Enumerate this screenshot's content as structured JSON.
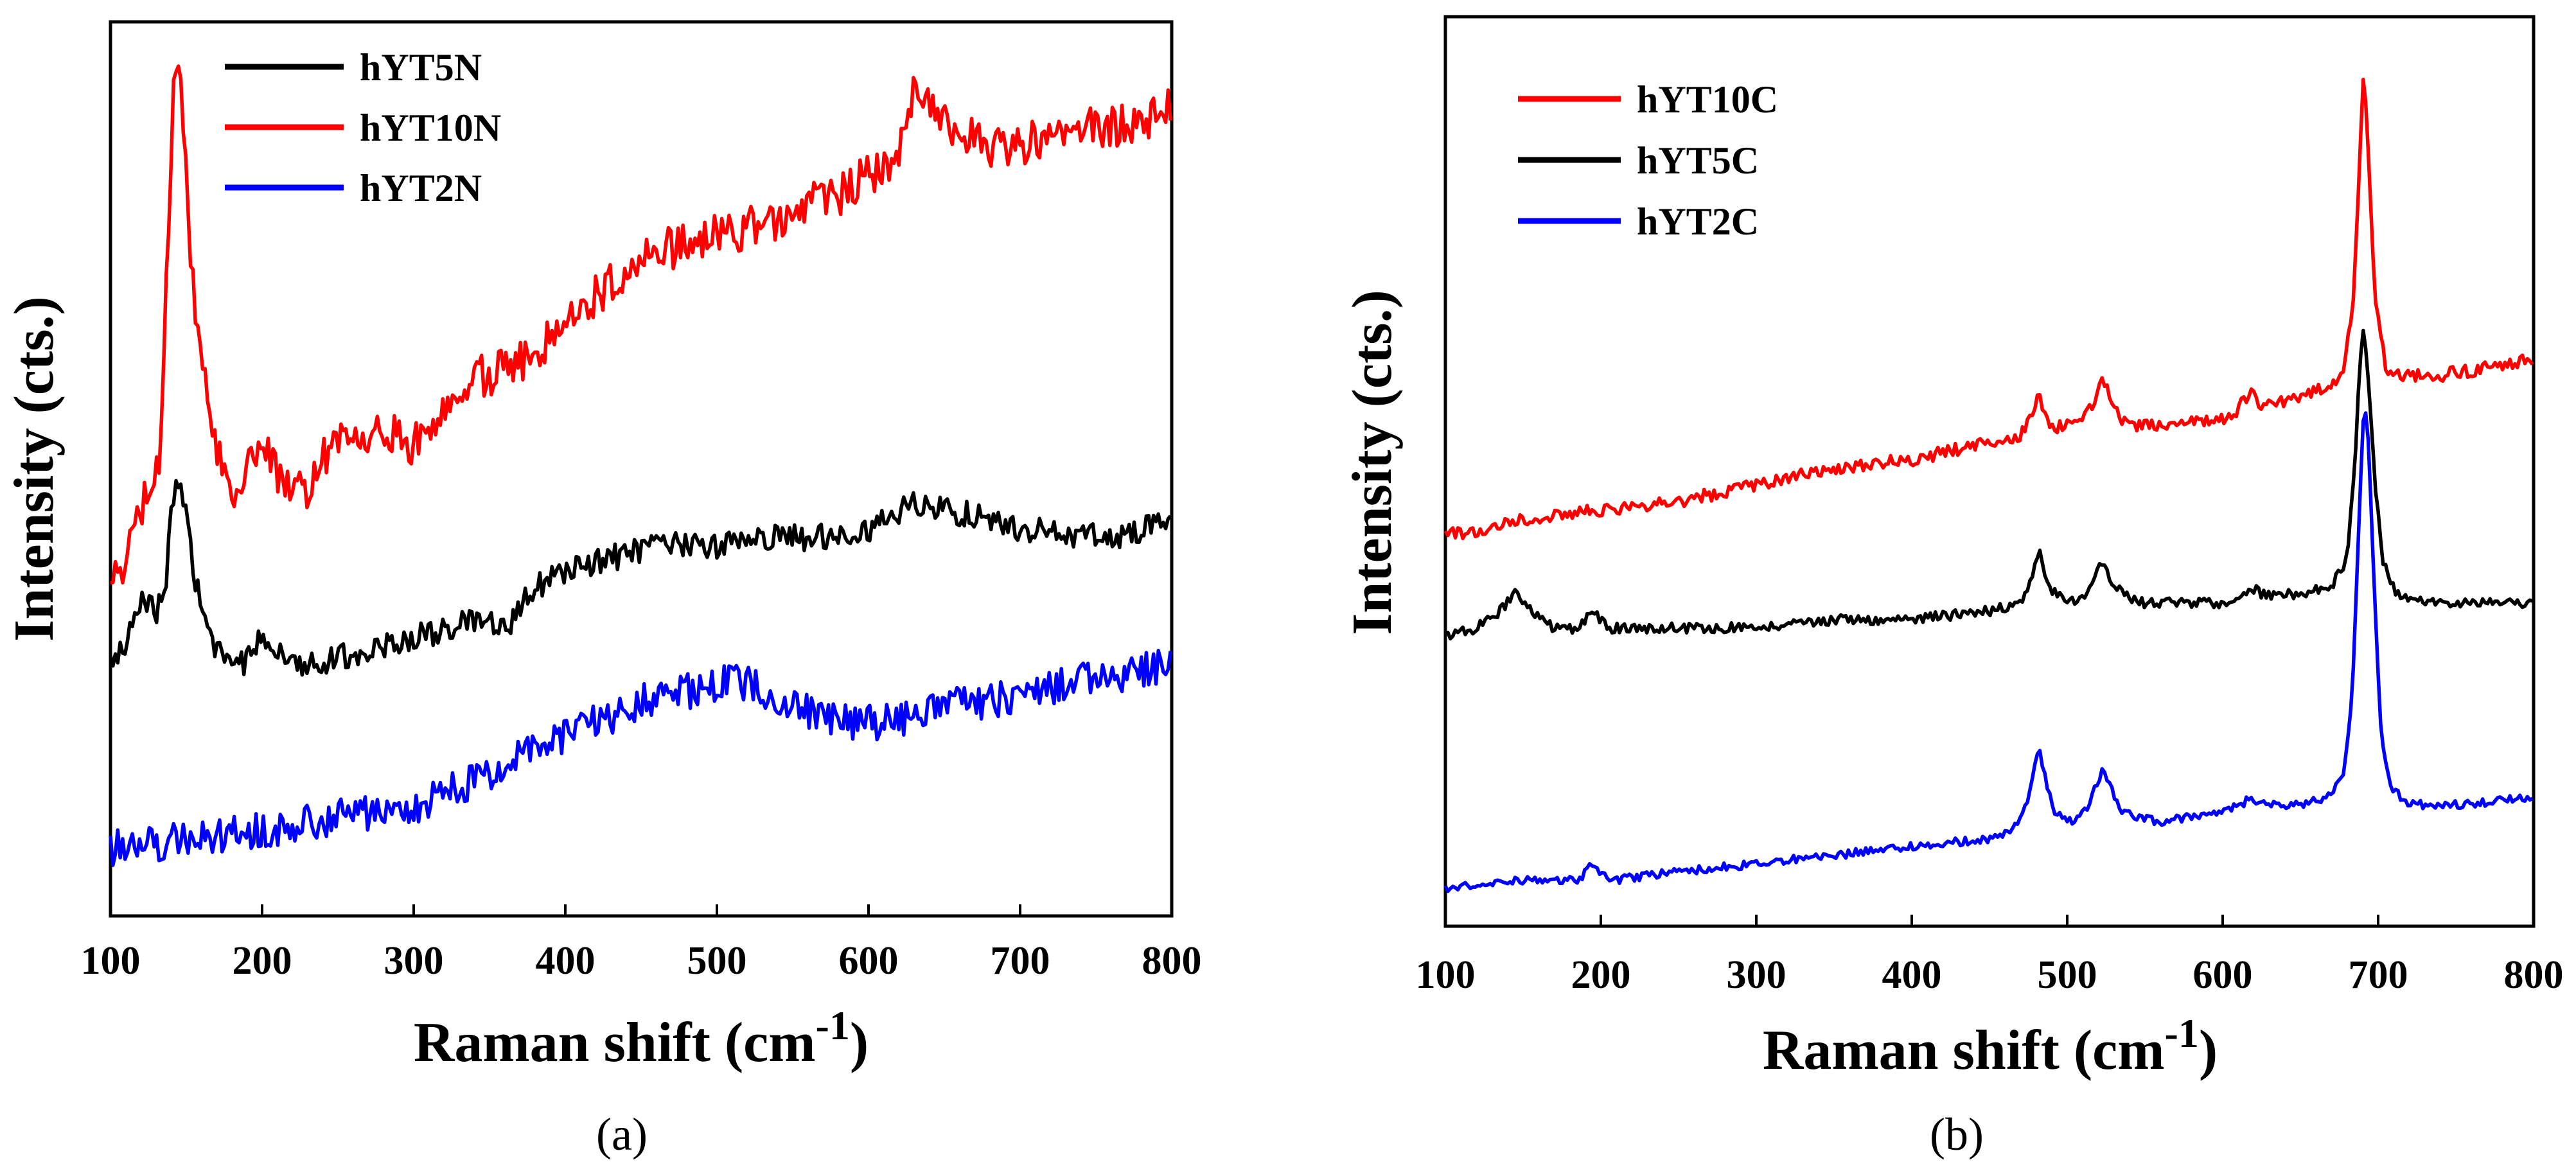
{
  "chart_data": [
    {
      "type": "line",
      "panel_label": "(a)",
      "xlabel": "Raman shift (cm",
      "xlabel_sup": "-1",
      "xlabel_close": ")",
      "ylabel": "Intensity (cts.)",
      "xlim": [
        100,
        800
      ],
      "ylim": [
        0,
        100
      ],
      "x_ticks": [
        100,
        200,
        300,
        400,
        500,
        600,
        700,
        800
      ],
      "x_tick_labels": [
        "100",
        "200",
        "300",
        "400",
        "500",
        "600",
        "700",
        "800"
      ],
      "y_ticks_labeled": false,
      "legend_position": "top-left",
      "series": [
        {
          "name": "hYT5N",
          "color": "#000000",
          "noise": 1.6,
          "points": [
            [
              100,
              27
            ],
            [
              110,
              29
            ],
            [
              120,
              34
            ],
            [
              125,
              35
            ],
            [
              130,
              33
            ],
            [
              136,
              36
            ],
            [
              140,
              44
            ],
            [
              145,
              49
            ],
            [
              150,
              44
            ],
            [
              158,
              35
            ],
            [
              170,
              28
            ],
            [
              190,
              27
            ],
            [
              200,
              31
            ],
            [
              210,
              28
            ],
            [
              230,
              27
            ],
            [
              260,
              28
            ],
            [
              300,
              30
            ],
            [
              340,
              32
            ],
            [
              360,
              31
            ],
            [
              380,
              36
            ],
            [
              400,
              38
            ],
            [
              440,
              40
            ],
            [
              460,
              41
            ],
            [
              500,
              41
            ],
            [
              520,
              42
            ],
            [
              560,
              42
            ],
            [
              600,
              43
            ],
            [
              630,
              46
            ],
            [
              660,
              45
            ],
            [
              700,
              43
            ],
            [
              760,
              42
            ],
            [
              800,
              44
            ]
          ]
        },
        {
          "name": "hYT10N",
          "color": "#ff0000",
          "noise": 2.6,
          "points": [
            [
              100,
              35
            ],
            [
              110,
              40
            ],
            [
              118,
              44
            ],
            [
              125,
              48
            ],
            [
              132,
              50
            ],
            [
              138,
              78
            ],
            [
              142,
              97
            ],
            [
              145,
              100
            ],
            [
              148,
              92
            ],
            [
              153,
              75
            ],
            [
              160,
              62
            ],
            [
              170,
              52
            ],
            [
              180,
              47
            ],
            [
              190,
              50
            ],
            [
              200,
              55
            ],
            [
              210,
              49
            ],
            [
              220,
              47
            ],
            [
              230,
              48
            ],
            [
              240,
              52
            ],
            [
              260,
              54
            ],
            [
              280,
              55
            ],
            [
              300,
              53
            ],
            [
              320,
              58
            ],
            [
              340,
              61
            ],
            [
              360,
              62
            ],
            [
              380,
              64
            ],
            [
              400,
              68
            ],
            [
              430,
              72
            ],
            [
              460,
              76
            ],
            [
              500,
              78
            ],
            [
              540,
              80
            ],
            [
              580,
              83
            ],
            [
              610,
              86
            ],
            [
              620,
              88
            ],
            [
              630,
              96
            ],
            [
              640,
              94
            ],
            [
              660,
              90
            ],
            [
              690,
              88
            ],
            [
              720,
              90
            ],
            [
              760,
              91
            ],
            [
              800,
              93
            ]
          ]
        },
        {
          "name": "hYT2N",
          "color": "#0000ff",
          "noise": 2.2,
          "points": [
            [
              100,
              5
            ],
            [
              150,
              6
            ],
            [
              200,
              7
            ],
            [
              260,
              9
            ],
            [
              300,
              10
            ],
            [
              340,
              13
            ],
            [
              380,
              17
            ],
            [
              420,
              20
            ],
            [
              460,
              23
            ],
            [
              490,
              24
            ],
            [
              510,
              25
            ],
            [
              530,
              24
            ],
            [
              560,
              21
            ],
            [
              590,
              20
            ],
            [
              620,
              20
            ],
            [
              660,
              22
            ],
            [
              700,
              23
            ],
            [
              740,
              25
            ],
            [
              780,
              26
            ],
            [
              800,
              27
            ]
          ]
        }
      ]
    },
    {
      "type": "line",
      "panel_label": "(b)",
      "xlabel": "Raman shift (cm",
      "xlabel_sup": "-1",
      "xlabel_close": ")",
      "ylabel": "Intensity (cts.)",
      "xlim": [
        100,
        800
      ],
      "ylim": [
        0,
        100
      ],
      "x_ticks": [
        100,
        200,
        300,
        400,
        500,
        600,
        700,
        800
      ],
      "x_tick_labels": [
        "100",
        "200",
        "300",
        "400",
        "500",
        "600",
        "700",
        "800"
      ],
      "y_ticks_labeled": false,
      "legend_position": "top-left",
      "series": [
        {
          "name": "hYT10C",
          "color": "#ff0000",
          "noise": 0.8,
          "points": [
            [
              100,
              44
            ],
            [
              130,
              45
            ],
            [
              145,
              46
            ],
            [
              160,
              46
            ],
            [
              200,
              47
            ],
            [
              250,
              48
            ],
            [
              300,
              50
            ],
            [
              350,
              52
            ],
            [
              400,
              53
            ],
            [
              450,
              55
            ],
            [
              470,
              56
            ],
            [
              477,
              58
            ],
            [
              482,
              61
            ],
            [
              488,
              57
            ],
            [
              500,
              57
            ],
            [
              510,
              58
            ],
            [
              518,
              60
            ],
            [
              523,
              63
            ],
            [
              530,
              59
            ],
            [
              540,
              57
            ],
            [
              560,
              57
            ],
            [
              600,
              58
            ],
            [
              610,
              59
            ],
            [
              618,
              61
            ],
            [
              625,
              59
            ],
            [
              640,
              60
            ],
            [
              660,
              61
            ],
            [
              670,
              62
            ],
            [
              678,
              64
            ],
            [
              684,
              72
            ],
            [
              688,
              88
            ],
            [
              691,
              100
            ],
            [
              694,
              88
            ],
            [
              698,
              72
            ],
            [
              705,
              64
            ],
            [
              715,
              63
            ],
            [
              740,
              63
            ],
            [
              770,
              64
            ],
            [
              800,
              65
            ]
          ]
        },
        {
          "name": "hYT5C",
          "color": "#000000",
          "noise": 0.6,
          "points": [
            [
              100,
              32
            ],
            [
              120,
              33
            ],
            [
              135,
              35
            ],
            [
              145,
              37
            ],
            [
              155,
              35
            ],
            [
              170,
              33
            ],
            [
              185,
              33
            ],
            [
              195,
              35
            ],
            [
              205,
              33
            ],
            [
              230,
              33
            ],
            [
              260,
              33
            ],
            [
              300,
              33
            ],
            [
              350,
              34
            ],
            [
              400,
              34
            ],
            [
              450,
              35
            ],
            [
              470,
              36
            ],
            [
              477,
              39
            ],
            [
              482,
              42
            ],
            [
              488,
              38
            ],
            [
              500,
              36
            ],
            [
              512,
              37
            ],
            [
              518,
              39
            ],
            [
              523,
              41
            ],
            [
              530,
              38
            ],
            [
              545,
              36
            ],
            [
              600,
              36
            ],
            [
              612,
              37
            ],
            [
              618,
              38
            ],
            [
              625,
              37
            ],
            [
              650,
              37
            ],
            [
              670,
              38
            ],
            [
              680,
              41
            ],
            [
              685,
              52
            ],
            [
              688,
              64
            ],
            [
              691,
              69
            ],
            [
              694,
              62
            ],
            [
              698,
              50
            ],
            [
              703,
              41
            ],
            [
              712,
              37
            ],
            [
              740,
              36
            ],
            [
              800,
              36
            ]
          ]
        },
        {
          "name": "hYT2C",
          "color": "#0000ff",
          "noise": 0.5,
          "points": [
            [
              100,
              2
            ],
            [
              150,
              3
            ],
            [
              185,
              3
            ],
            [
              195,
              5
            ],
            [
              205,
              3
            ],
            [
              250,
              4
            ],
            [
              300,
              5
            ],
            [
              350,
              6
            ],
            [
              400,
              7
            ],
            [
              450,
              8
            ],
            [
              465,
              9
            ],
            [
              474,
              12
            ],
            [
              479,
              17
            ],
            [
              482,
              19
            ],
            [
              486,
              15
            ],
            [
              492,
              11
            ],
            [
              505,
              10
            ],
            [
              514,
              12
            ],
            [
              520,
              15
            ],
            [
              523,
              16
            ],
            [
              528,
              14
            ],
            [
              535,
              11
            ],
            [
              560,
              10
            ],
            [
              600,
              11
            ],
            [
              612,
              12
            ],
            [
              618,
              13
            ],
            [
              625,
              12
            ],
            [
              650,
              12
            ],
            [
              670,
              13
            ],
            [
              678,
              16
            ],
            [
              683,
              24
            ],
            [
              687,
              42
            ],
            [
              690,
              57
            ],
            [
              692,
              59
            ],
            [
              694,
              54
            ],
            [
              698,
              36
            ],
            [
              702,
              20
            ],
            [
              708,
              14
            ],
            [
              720,
              12
            ],
            [
              760,
              12
            ],
            [
              800,
              13
            ]
          ]
        }
      ]
    }
  ]
}
